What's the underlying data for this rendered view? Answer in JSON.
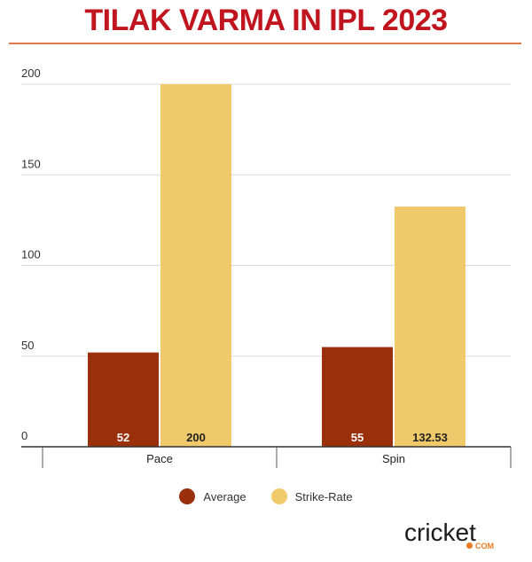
{
  "header": {
    "title": "TILAK VARMA IN IPL 2023"
  },
  "colors": {
    "average": "#9a2f0b",
    "strike_rate": "#f0c96a",
    "title": "#c0141e",
    "rule": "#e07a4a",
    "logo_accent": "#ee7a1f"
  },
  "chart_data": {
    "type": "bar",
    "title": "TILAK VARMA IN IPL 2023",
    "xlabel": "",
    "ylabel": "",
    "ylim": [
      0,
      200
    ],
    "yticks": [
      0,
      50,
      100,
      150,
      200
    ],
    "categories": [
      "Pace",
      "Spin"
    ],
    "series": [
      {
        "name": "Average",
        "values": [
          52,
          55
        ],
        "labels": [
          "52",
          "55"
        ],
        "color": "#9a2f0b",
        "label_color": "#ffffff"
      },
      {
        "name": "Strike-Rate",
        "values": [
          200,
          132.53
        ],
        "labels": [
          "200",
          "132.53"
        ],
        "color": "#f0c96a",
        "label_color": "#222222"
      }
    ],
    "grid": true,
    "legend_position": "bottom"
  },
  "logo": {
    "word": "cricket",
    "suffix": "COM"
  }
}
